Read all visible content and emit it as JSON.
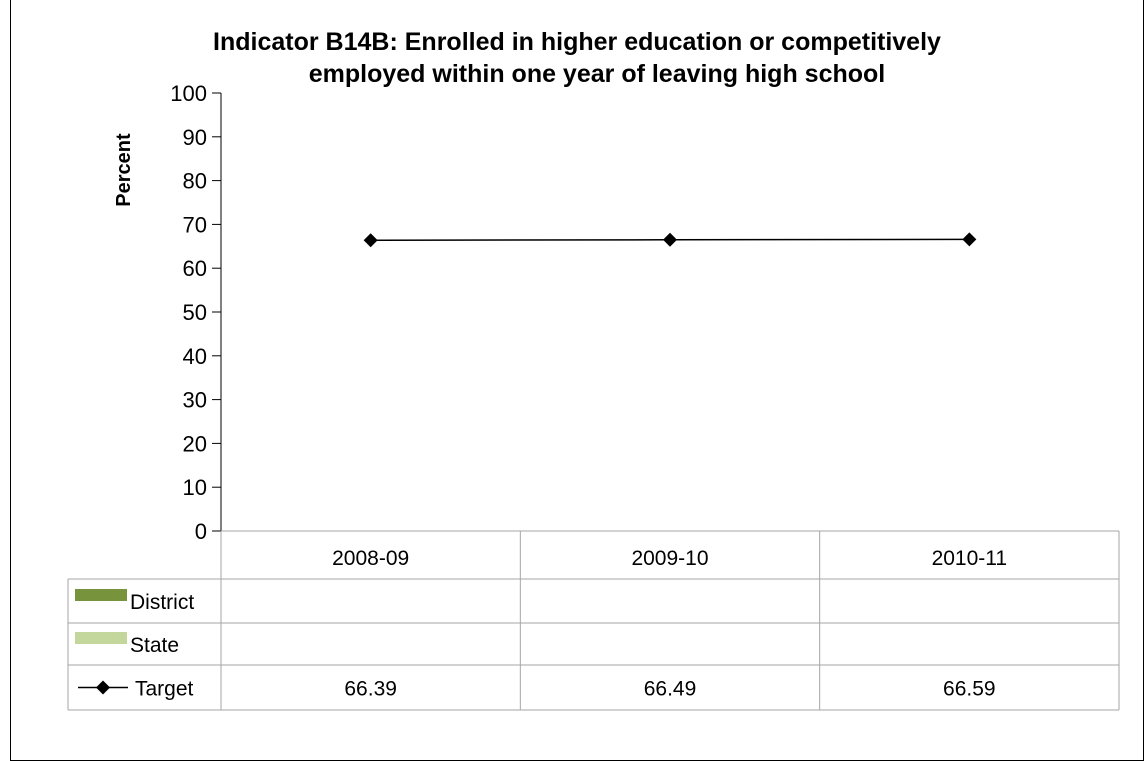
{
  "chart_data": {
    "type": "line",
    "title_lines": [
      "Indicator B14B: Enrolled in higher education or competitively",
      "employed within one year of leaving high school"
    ],
    "ylabel": "Percent",
    "ylim": [
      0,
      100
    ],
    "y_ticks": [
      "0",
      "10",
      "20",
      "30",
      "40",
      "50",
      "60",
      "70",
      "80",
      "90",
      "100"
    ],
    "categories": [
      "2008-09",
      "2009-10",
      "2010-11"
    ],
    "series": [
      {
        "name": "District",
        "kind": "bar",
        "color": "#77933C",
        "values": [
          null,
          null,
          null
        ],
        "labels": [
          "",
          "",
          ""
        ]
      },
      {
        "name": "State",
        "kind": "bar",
        "color": "#C3D69B",
        "values": [
          null,
          null,
          null
        ],
        "labels": [
          "",
          "",
          ""
        ]
      },
      {
        "name": "Target",
        "kind": "line",
        "color": "#000000",
        "marker": "diamond",
        "values": [
          66.39,
          66.49,
          66.59
        ],
        "labels": [
          "66.39",
          "66.49",
          "66.59"
        ]
      }
    ],
    "grid": false,
    "legend": "data-table"
  }
}
